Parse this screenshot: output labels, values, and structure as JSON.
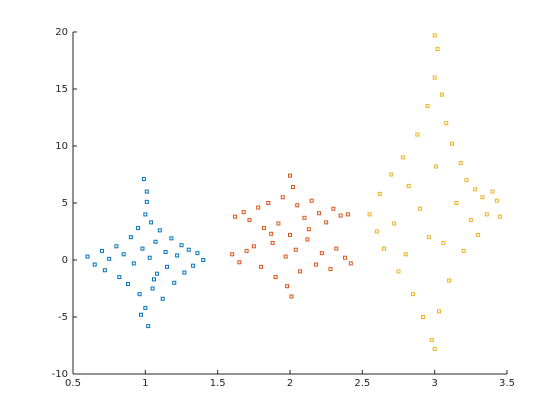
{
  "chart_data": {
    "type": "scatter",
    "xlim": [
      0.5,
      3.5
    ],
    "xticks": [
      0.5,
      1,
      1.5,
      2,
      2.5,
      3,
      3.5
    ],
    "ylim": [
      -10,
      20
    ],
    "yticks": [
      -10,
      -5,
      0,
      5,
      10,
      15,
      20
    ],
    "series": [
      {
        "color": "#0072bd",
        "x": [
          0.6,
          0.65,
          0.7,
          0.72,
          0.75,
          0.8,
          0.82,
          0.85,
          0.88,
          0.9,
          0.92,
          0.95,
          0.96,
          0.98,
          1.0,
          1.0,
          1.01,
          1.02,
          1.03,
          1.04,
          1.05,
          1.07,
          1.08,
          1.1,
          1.12,
          1.14,
          1.15,
          1.18,
          1.2,
          1.22,
          1.25,
          1.27,
          1.3,
          1.33,
          1.36,
          1.4,
          0.99,
          1.01,
          0.97,
          1.06
        ],
        "y": [
          0.3,
          -0.4,
          0.8,
          -0.9,
          0.1,
          1.2,
          -1.5,
          0.5,
          -2.1,
          2.0,
          -0.3,
          2.8,
          -3.0,
          1.0,
          4.0,
          -4.2,
          6.0,
          -5.8,
          0.2,
          3.3,
          -2.5,
          1.6,
          -1.2,
          2.6,
          -3.4,
          0.7,
          -0.6,
          1.9,
          -2.0,
          0.4,
          1.3,
          -1.1,
          0.9,
          -0.5,
          0.6,
          0.0,
          7.1,
          5.1,
          -4.8,
          -1.7
        ]
      },
      {
        "color": "#d95319",
        "x": [
          1.6,
          1.62,
          1.65,
          1.68,
          1.7,
          1.72,
          1.75,
          1.78,
          1.8,
          1.82,
          1.85,
          1.88,
          1.9,
          1.92,
          1.95,
          1.97,
          1.98,
          2.0,
          2.0,
          2.01,
          2.02,
          2.04,
          2.05,
          2.07,
          2.1,
          2.12,
          2.15,
          2.18,
          2.2,
          2.22,
          2.25,
          2.28,
          2.3,
          2.32,
          2.35,
          2.38,
          2.4,
          2.42,
          1.87,
          2.13
        ],
        "y": [
          0.5,
          3.8,
          -0.2,
          4.2,
          0.8,
          3.5,
          1.2,
          4.6,
          -0.6,
          2.8,
          5.0,
          1.5,
          -1.5,
          3.2,
          5.5,
          0.3,
          -2.3,
          7.4,
          2.2,
          -3.2,
          6.4,
          0.9,
          4.8,
          -1.0,
          3.7,
          1.8,
          5.2,
          -0.4,
          4.1,
          0.6,
          3.3,
          -0.8,
          4.5,
          1.0,
          3.9,
          0.2,
          4.0,
          -0.3,
          2.3,
          2.7
        ]
      },
      {
        "color": "#edb120",
        "x": [
          2.55,
          2.6,
          2.62,
          2.65,
          2.7,
          2.72,
          2.75,
          2.78,
          2.8,
          2.82,
          2.85,
          2.88,
          2.9,
          2.92,
          2.95,
          2.96,
          2.98,
          3.0,
          3.0,
          3.0,
          3.01,
          3.02,
          3.03,
          3.05,
          3.06,
          3.08,
          3.1,
          3.12,
          3.15,
          3.18,
          3.2,
          3.22,
          3.25,
          3.28,
          3.3,
          3.33,
          3.36,
          3.4,
          3.43,
          3.45
        ],
        "y": [
          4.0,
          2.5,
          5.8,
          1.0,
          7.5,
          3.2,
          -1.0,
          9.0,
          0.5,
          6.5,
          -3.0,
          11.0,
          4.5,
          -5.0,
          13.5,
          2.0,
          -7.0,
          19.7,
          16.0,
          -7.8,
          8.2,
          18.5,
          -4.5,
          14.5,
          1.5,
          12.0,
          -1.8,
          10.2,
          5.0,
          8.5,
          0.8,
          7.0,
          3.5,
          6.2,
          2.2,
          5.5,
          4.0,
          6.0,
          5.2,
          3.8
        ]
      }
    ]
  }
}
